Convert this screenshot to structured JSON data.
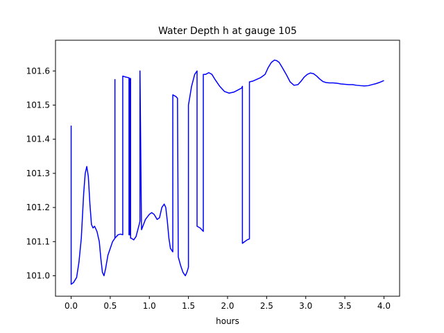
{
  "chart_data": {
    "type": "line",
    "title": "Water Depth h at gauge 105",
    "xlabel": "hours",
    "ylabel": "",
    "xlim": [
      -0.2,
      4.2
    ],
    "ylim": [
      100.94,
      101.69
    ],
    "grid": false,
    "x_ticks": [
      0.0,
      0.5,
      1.0,
      1.5,
      2.0,
      2.5,
      3.0,
      3.5,
      4.0
    ],
    "x_tick_labels": [
      "0.0",
      "0.5",
      "1.0",
      "1.5",
      "2.0",
      "2.5",
      "3.0",
      "3.5",
      "4.0"
    ],
    "y_ticks": [
      101.0,
      101.1,
      101.2,
      101.3,
      101.4,
      101.5,
      101.6
    ],
    "y_tick_labels": [
      "101.0",
      "101.1",
      "101.2",
      "101.3",
      "101.4",
      "101.5",
      "101.6"
    ],
    "series": [
      {
        "color": "#0000ff",
        "x": [
          0.0,
          0.0,
          0.03,
          0.07,
          0.1,
          0.13,
          0.16,
          0.18,
          0.2,
          0.22,
          0.24,
          0.26,
          0.28,
          0.3,
          0.33,
          0.36,
          0.38,
          0.4,
          0.42,
          0.44,
          0.47,
          0.5,
          0.53,
          0.56,
          0.56,
          0.56,
          0.6,
          0.63,
          0.66,
          0.66,
          0.7,
          0.74,
          0.74,
          0.75,
          0.75,
          0.76,
          0.76,
          0.77,
          0.8,
          0.83,
          0.87,
          0.88,
          0.88,
          0.9,
          0.95,
          1.0,
          1.03,
          1.06,
          1.1,
          1.13,
          1.16,
          1.19,
          1.21,
          1.23,
          1.25,
          1.27,
          1.3,
          1.3,
          1.34,
          1.36,
          1.37,
          1.4,
          1.43,
          1.46,
          1.48,
          1.5,
          1.5,
          1.54,
          1.58,
          1.61,
          1.61,
          1.65,
          1.69,
          1.69,
          1.72,
          1.76,
          1.8,
          1.84,
          1.9,
          1.96,
          2.02,
          2.08,
          2.14,
          2.18,
          2.19,
          2.19,
          2.22,
          2.25,
          2.28,
          2.28,
          2.32,
          2.37,
          2.42,
          2.48,
          2.52,
          2.56,
          2.6,
          2.63,
          2.66,
          2.7,
          2.75,
          2.8,
          2.85,
          2.9,
          2.94,
          2.98,
          3.02,
          3.06,
          3.1,
          3.14,
          3.18,
          3.22,
          3.26,
          3.3,
          3.35,
          3.4,
          3.45,
          3.5,
          3.55,
          3.6,
          3.65,
          3.7,
          3.75,
          3.8,
          3.85,
          3.9,
          3.95,
          4.0
        ],
        "y": [
          101.44,
          100.975,
          100.98,
          100.995,
          101.04,
          101.11,
          101.24,
          101.3,
          101.32,
          101.29,
          101.21,
          101.15,
          101.14,
          101.145,
          101.13,
          101.1,
          101.05,
          101.01,
          101.0,
          101.02,
          101.06,
          101.08,
          101.1,
          101.11,
          101.575,
          101.11,
          101.12,
          101.122,
          101.12,
          101.585,
          101.582,
          101.58,
          101.12,
          101.12,
          101.578,
          101.578,
          101.11,
          101.11,
          101.105,
          101.115,
          101.15,
          101.16,
          101.6,
          101.135,
          101.165,
          101.18,
          101.185,
          101.18,
          101.165,
          101.17,
          101.2,
          101.21,
          101.2,
          101.16,
          101.11,
          101.08,
          101.07,
          101.53,
          101.525,
          101.52,
          101.055,
          101.03,
          101.01,
          101.0,
          101.01,
          101.025,
          101.5,
          101.555,
          101.59,
          101.6,
          101.145,
          101.14,
          101.13,
          101.59,
          101.59,
          101.595,
          101.59,
          101.575,
          101.555,
          101.54,
          101.535,
          101.538,
          101.545,
          101.55,
          101.555,
          101.095,
          101.1,
          101.105,
          101.108,
          101.568,
          101.57,
          101.575,
          101.58,
          101.59,
          101.61,
          101.625,
          101.632,
          101.63,
          101.625,
          101.61,
          101.59,
          101.568,
          101.558,
          101.56,
          101.57,
          101.582,
          101.59,
          101.594,
          101.592,
          101.585,
          101.576,
          101.569,
          101.566,
          101.565,
          101.565,
          101.564,
          101.562,
          101.561,
          101.56,
          101.56,
          101.558,
          101.557,
          101.556,
          101.557,
          101.56,
          101.563,
          101.567,
          101.572
        ]
      }
    ]
  }
}
